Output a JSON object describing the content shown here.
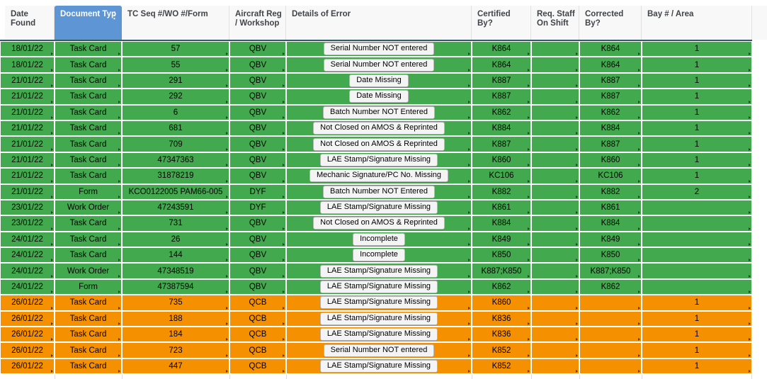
{
  "colors": {
    "row_green": "#43a94e",
    "row_orange": "#f59100",
    "header_selected": "#5d95d5",
    "frozen_divider": "#2f5a68"
  },
  "header": {
    "columns": [
      {
        "label": "Date Found"
      },
      {
        "label": "Document Typ",
        "selected": true,
        "menu_icon": "⋮"
      },
      {
        "label": "TC Seq #/WO #/Form"
      },
      {
        "label": "Aircraft Reg / Workshop"
      },
      {
        "label": "Details of Error"
      },
      {
        "label": "Certified By?"
      },
      {
        "label": "Req. Staff On Shift"
      },
      {
        "label": "Corrected By?"
      },
      {
        "label": "Bay # / Area"
      }
    ]
  },
  "rows": [
    {
      "date_found": "18/01/22",
      "document_type": "Task Card",
      "tc_seq": "57",
      "aircraft_reg": "QBV",
      "details_of_error": "Serial Number NOT entered",
      "certified_by": "K864",
      "req_staff_on_shift": "",
      "corrected_by": "K864",
      "bay_area": "1",
      "status": "green"
    },
    {
      "date_found": "18/01/22",
      "document_type": "Task Card",
      "tc_seq": "55",
      "aircraft_reg": "QBV",
      "details_of_error": "Serial Number NOT entered",
      "certified_by": "K864",
      "req_staff_on_shift": "",
      "corrected_by": "K864",
      "bay_area": "1",
      "status": "green"
    },
    {
      "date_found": "21/01/22",
      "document_type": "Task Card",
      "tc_seq": "291",
      "aircraft_reg": "QBV",
      "details_of_error": "Date Missing",
      "certified_by": "K887",
      "req_staff_on_shift": "",
      "corrected_by": "K887",
      "bay_area": "1",
      "status": "green"
    },
    {
      "date_found": "21/01/22",
      "document_type": "Task Card",
      "tc_seq": "292",
      "aircraft_reg": "QBV",
      "details_of_error": "Date Missing",
      "certified_by": "K887",
      "req_staff_on_shift": "",
      "corrected_by": "K887",
      "bay_area": "1",
      "status": "green"
    },
    {
      "date_found": "21/01/22",
      "document_type": "Task Card",
      "tc_seq": "6",
      "aircraft_reg": "QBV",
      "details_of_error": "Batch Number NOT Entered",
      "certified_by": "K862",
      "req_staff_on_shift": "",
      "corrected_by": "K862",
      "bay_area": "1",
      "status": "green"
    },
    {
      "date_found": "21/01/22",
      "document_type": "Task Card",
      "tc_seq": "681",
      "aircraft_reg": "QBV",
      "details_of_error": "Not Closed on AMOS & Reprinted",
      "certified_by": "K884",
      "req_staff_on_shift": "",
      "corrected_by": "K884",
      "bay_area": "1",
      "status": "green"
    },
    {
      "date_found": "21/01/22",
      "document_type": "Task Card",
      "tc_seq": "709",
      "aircraft_reg": "QBV",
      "details_of_error": "Not Closed on AMOS & Reprinted",
      "certified_by": "K887",
      "req_staff_on_shift": "",
      "corrected_by": "K887",
      "bay_area": "1",
      "status": "green"
    },
    {
      "date_found": "21/01/22",
      "document_type": "Task Card",
      "tc_seq": "47347363",
      "aircraft_reg": "QBV",
      "details_of_error": "LAE Stamp/Signature Missing",
      "certified_by": "K860",
      "req_staff_on_shift": "",
      "corrected_by": "K860",
      "bay_area": "1",
      "status": "green"
    },
    {
      "date_found": "21/01/22",
      "document_type": "Task Card",
      "tc_seq": "31878219",
      "aircraft_reg": "QBV",
      "details_of_error": "Mechanic Signature/PC No. Missing",
      "certified_by": "KC106",
      "req_staff_on_shift": "",
      "corrected_by": "KC106",
      "bay_area": "1",
      "status": "green"
    },
    {
      "date_found": "21/01/22",
      "document_type": "Form",
      "tc_seq": "KCO0122005 PAM66-005",
      "aircraft_reg": "DYF",
      "details_of_error": "Batch Number NOT Entered",
      "certified_by": "K882",
      "req_staff_on_shift": "",
      "corrected_by": "K882",
      "bay_area": "2",
      "status": "green"
    },
    {
      "date_found": "23/01/22",
      "document_type": "Work Order",
      "tc_seq": "47243591",
      "aircraft_reg": "DYF",
      "details_of_error": "LAE Stamp/Signature Missing",
      "certified_by": "K861",
      "req_staff_on_shift": "",
      "corrected_by": "K861",
      "bay_area": "",
      "status": "green"
    },
    {
      "date_found": "23/01/22",
      "document_type": "Task Card",
      "tc_seq": "731",
      "aircraft_reg": "QBV",
      "details_of_error": "Not Closed on AMOS & Reprinted",
      "certified_by": "K884",
      "req_staff_on_shift": "",
      "corrected_by": "K884",
      "bay_area": "",
      "status": "green"
    },
    {
      "date_found": "24/01/22",
      "document_type": "Task Card",
      "tc_seq": "26",
      "aircraft_reg": "QBV",
      "details_of_error": "Incomplete",
      "certified_by": "K849",
      "req_staff_on_shift": "",
      "corrected_by": "K849",
      "bay_area": "",
      "status": "green"
    },
    {
      "date_found": "24/01/22",
      "document_type": "Task Card",
      "tc_seq": "144",
      "aircraft_reg": "QBV",
      "details_of_error": "Incomplete",
      "certified_by": "K850",
      "req_staff_on_shift": "",
      "corrected_by": "K850",
      "bay_area": "",
      "status": "green"
    },
    {
      "date_found": "24/01/22",
      "document_type": "Work Order",
      "tc_seq": "47348519",
      "aircraft_reg": "QBV",
      "details_of_error": "LAE Stamp/Signature Missing",
      "certified_by": "K887;K850",
      "req_staff_on_shift": "",
      "corrected_by": "K887;K850",
      "bay_area": "",
      "status": "green"
    },
    {
      "date_found": "24/01/22",
      "document_type": "Form",
      "tc_seq": "47387594",
      "aircraft_reg": "QBV",
      "details_of_error": "LAE Stamp/Signature Missing",
      "certified_by": "K862",
      "req_staff_on_shift": "",
      "corrected_by": "K862",
      "bay_area": "",
      "status": "green"
    },
    {
      "date_found": "26/01/22",
      "document_type": "Task Card",
      "tc_seq": "735",
      "aircraft_reg": "QCB",
      "details_of_error": "LAE Stamp/Signature Missing",
      "certified_by": "K860",
      "req_staff_on_shift": "",
      "corrected_by": "",
      "bay_area": "1",
      "status": "orange"
    },
    {
      "date_found": "26/01/22",
      "document_type": "Task Card",
      "tc_seq": "188",
      "aircraft_reg": "QCB",
      "details_of_error": "LAE Stamp/Signature Missing",
      "certified_by": "K836",
      "req_staff_on_shift": "",
      "corrected_by": "",
      "bay_area": "1",
      "status": "orange"
    },
    {
      "date_found": "26/01/22",
      "document_type": "Task Card",
      "tc_seq": "184",
      "aircraft_reg": "QCB",
      "details_of_error": "LAE Stamp/Signature Missing",
      "certified_by": "K836",
      "req_staff_on_shift": "",
      "corrected_by": "",
      "bay_area": "1",
      "status": "orange"
    },
    {
      "date_found": "26/01/22",
      "document_type": "Task Card",
      "tc_seq": "723",
      "aircraft_reg": "QCB",
      "details_of_error": "Serial Number NOT entered",
      "certified_by": "K852",
      "req_staff_on_shift": "",
      "corrected_by": "",
      "bay_area": "1",
      "status": "orange"
    },
    {
      "date_found": "26/01/22",
      "document_type": "Task Card",
      "tc_seq": "447",
      "aircraft_reg": "QCB",
      "details_of_error": "LAE Stamp/Signature Missing",
      "certified_by": "K852",
      "req_staff_on_shift": "",
      "corrected_by": "",
      "bay_area": "1",
      "status": "orange"
    }
  ]
}
